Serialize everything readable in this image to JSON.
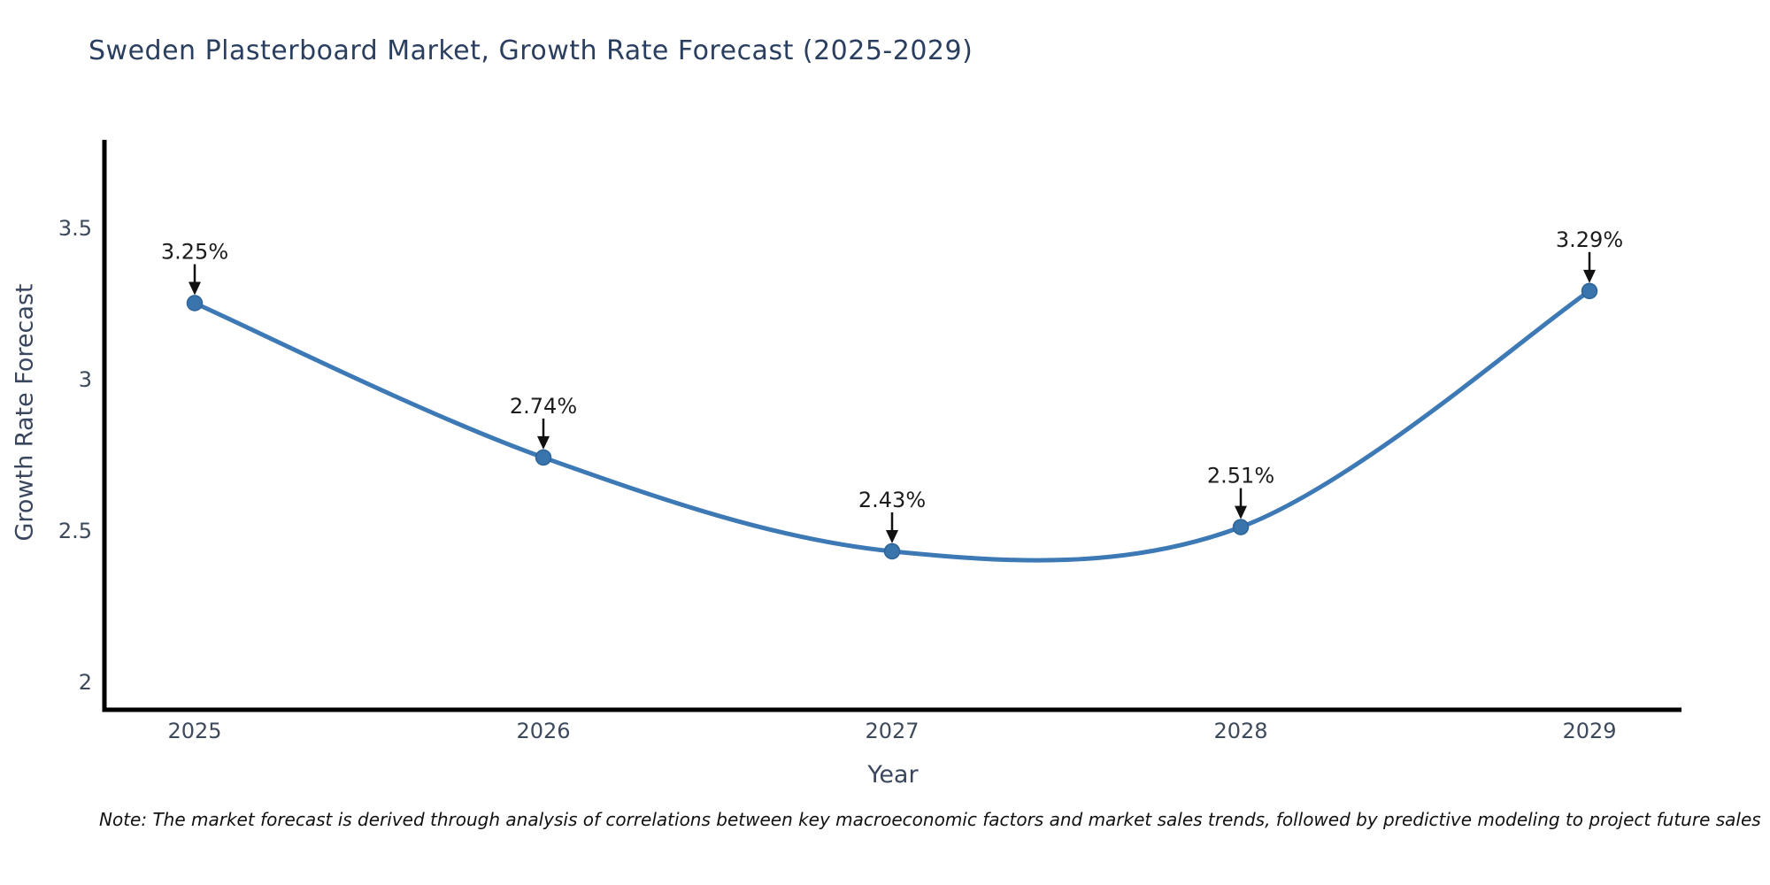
{
  "page": {
    "note": "Note: The market forecast is derived through analysis of correlations between key macroeconomic factors and market sales trends, followed by predictive modeling to project future sales"
  },
  "chart_data": {
    "type": "line",
    "title": "Sweden Plasterboard Market, Growth Rate Forecast (2025-2029)",
    "xlabel": "Year",
    "ylabel": "Growth Rate Forecast",
    "x": [
      2025,
      2026,
      2027,
      2028,
      2029
    ],
    "xticks": [
      "2025",
      "2026",
      "2027",
      "2028",
      "2029"
    ],
    "series": [
      {
        "name": "Growth Rate Forecast",
        "values": [
          3.25,
          2.74,
          2.43,
          2.51,
          3.29
        ],
        "labels": [
          "3.25%",
          "2.74%",
          "2.43%",
          "2.51%",
          "3.29%"
        ]
      }
    ],
    "ytick_values": [
      2,
      2.5,
      3,
      3.5
    ],
    "yticks": [
      "2",
      "2.5",
      "3",
      "3.5"
    ],
    "ylim": [
      1.91,
      3.78
    ],
    "grid": false,
    "legend": "none",
    "marker": "circle",
    "annotation_arrows": true,
    "line_smoothing": "spline",
    "colors": {
      "line": "#3c79b5",
      "marker": "#3a74ad",
      "marker_edge": "#2e6497",
      "axis": "#000000",
      "title": "#2a3f5f",
      "axis_label": "#39465e",
      "tick_label": "#3d4a5c",
      "annotation": "#1c1c1c",
      "arrow": "#111111",
      "note": "#111111",
      "background": "#ffffff"
    }
  }
}
